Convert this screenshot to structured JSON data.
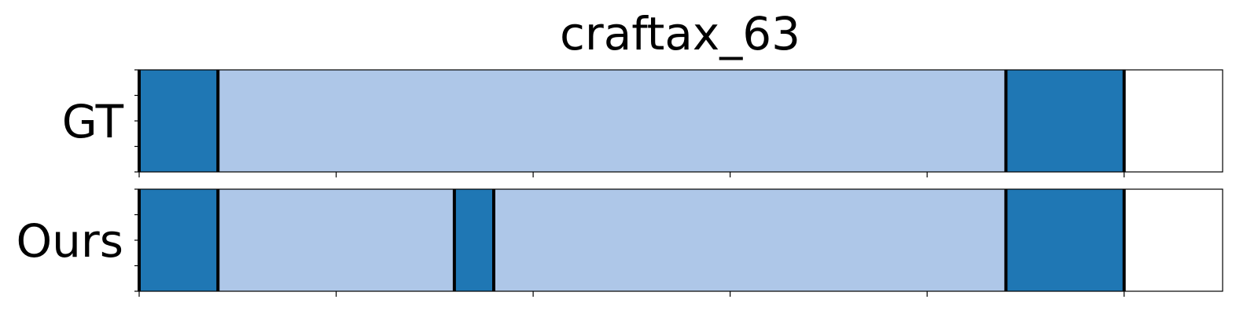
{
  "chart_data": {
    "type": "segmentation-timeline",
    "title": "craftax_63",
    "xlim": [
      0,
      275
    ],
    "x_major_ticks": [
      0,
      50,
      100,
      150,
      200,
      250
    ],
    "rows": [
      {
        "label": "GT",
        "segments": [
          {
            "start": 0,
            "end": 20,
            "class": "dark"
          },
          {
            "start": 20,
            "end": 220,
            "class": "light"
          },
          {
            "start": 220,
            "end": 250,
            "class": "dark"
          }
        ],
        "boundaries": [
          0,
          20,
          220,
          250
        ]
      },
      {
        "label": "Ours",
        "segments": [
          {
            "start": 0,
            "end": 20,
            "class": "dark"
          },
          {
            "start": 20,
            "end": 80,
            "class": "light"
          },
          {
            "start": 80,
            "end": 90,
            "class": "dark"
          },
          {
            "start": 90,
            "end": 220,
            "class": "light"
          },
          {
            "start": 220,
            "end": 250,
            "class": "dark"
          }
        ],
        "boundaries": [
          0,
          20,
          80,
          90,
          220,
          250
        ]
      }
    ],
    "colors": {
      "dark": "#1f77b4",
      "light": "#aec7e8",
      "boundary": "#000000"
    }
  }
}
